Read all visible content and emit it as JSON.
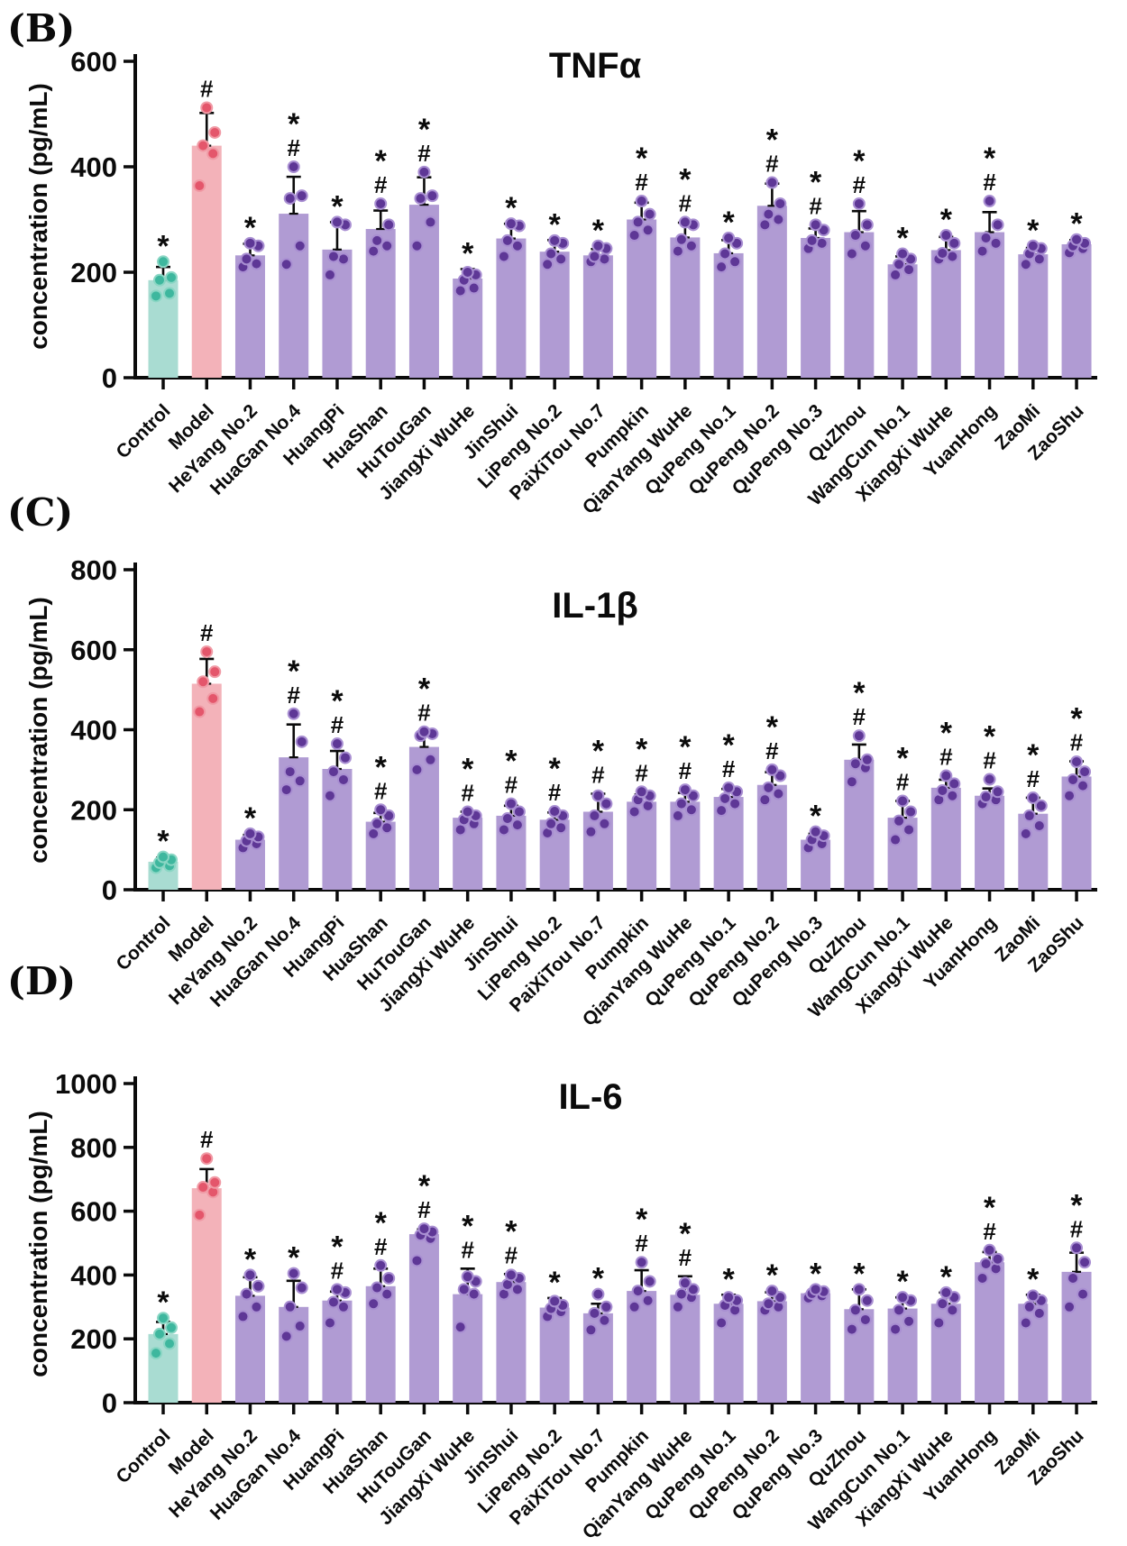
{
  "figure_colors": {
    "background": "#ffffff",
    "axis": "#0b0b0b",
    "control_bar": "#a9dcd2",
    "control_point": "#3eb79e",
    "control_point_stroke": "#8ad6c4",
    "model_bar": "#f3b2b9",
    "model_point": "#e4566b",
    "model_point_stroke": "#f09aa5",
    "treatment_bar": "#b09bd3",
    "treatment_point": "#5e3796",
    "treatment_point_stroke": "#a98fd2"
  },
  "category_groups": [
    "control",
    "model",
    "treatment",
    "treatment",
    "treatment",
    "treatment",
    "treatment",
    "treatment",
    "treatment",
    "treatment",
    "treatment",
    "treatment",
    "treatment",
    "treatment",
    "treatment",
    "treatment",
    "treatment",
    "treatment",
    "treatment",
    "treatment",
    "treatment",
    "treatment"
  ],
  "chart_data": [
    {
      "type": "bar",
      "panel_label": "(B)",
      "title": "TNFα",
      "ylabel": "concentration (pg/mL)",
      "ylim": [
        0,
        600
      ],
      "yticks": [
        0,
        200,
        400,
        600
      ],
      "grid": false,
      "legend": "none",
      "categories": [
        "Control",
        "Model",
        "HeYang No.2",
        "HuaGan No.4",
        "HuangPi",
        "HuaShan",
        "HuTouGan",
        "JiangXi WuHe",
        "JinShui",
        "LiPeng No.2",
        "PaiXiTou No.7",
        "Pumpkin",
        "QianYang WuHe",
        "QuPeng No.1",
        "QuPeng No.2",
        "QuPeng No.3",
        "QuZhou",
        "WangCun No.1",
        "XiangXi WuHe",
        "YuanHong",
        "ZaoMi",
        "ZaoShu"
      ],
      "values": [
        185,
        440,
        232,
        311,
        243,
        282,
        328,
        188,
        264,
        239,
        232,
        300,
        266,
        236,
        326,
        265,
        276,
        215,
        242,
        276,
        234,
        253
      ],
      "errors_sd_upper": [
        25,
        62,
        22,
        70,
        52,
        35,
        52,
        18,
        28,
        22,
        12,
        32,
        28,
        25,
        42,
        18,
        40,
        15,
        25,
        38,
        12,
        8
      ],
      "annotations": [
        "*",
        "#",
        "*",
        "*#",
        "*",
        "*#",
        "*#",
        "*",
        "*",
        "*",
        "*",
        "*#",
        "*#",
        "*",
        "*#",
        "*#",
        "*#",
        "*",
        "*",
        "*#",
        "*",
        "*"
      ],
      "points": [
        [
          155,
          160,
          185,
          190,
          220
        ],
        [
          364,
          425,
          440,
          465,
          512
        ],
        [
          210,
          216,
          225,
          250,
          255
        ],
        [
          215,
          250,
          340,
          345,
          400
        ],
        [
          195,
          225,
          230,
          290,
          295
        ],
        [
          240,
          250,
          260,
          290,
          330
        ],
        [
          250,
          295,
          340,
          345,
          390
        ],
        [
          165,
          170,
          185,
          195,
          200
        ],
        [
          230,
          250,
          260,
          288,
          292
        ],
        [
          215,
          225,
          235,
          255,
          260
        ],
        [
          220,
          225,
          230,
          245,
          250
        ],
        [
          270,
          280,
          295,
          310,
          335
        ],
        [
          240,
          250,
          262,
          290,
          295
        ],
        [
          210,
          220,
          235,
          255,
          265
        ],
        [
          290,
          300,
          310,
          330,
          370
        ],
        [
          245,
          255,
          260,
          280,
          290
        ],
        [
          235,
          250,
          270,
          290,
          330
        ],
        [
          195,
          205,
          215,
          225,
          235
        ],
        [
          225,
          230,
          236,
          255,
          270
        ],
        [
          240,
          255,
          265,
          290,
          335
        ],
        [
          215,
          225,
          235,
          245,
          250
        ],
        [
          237,
          245,
          250,
          255,
          262
        ]
      ]
    },
    {
      "type": "bar",
      "panel_label": "(C)",
      "title": "IL-1β",
      "ylabel": "concentration (pg/mL)",
      "ylim": [
        0,
        800
      ],
      "yticks": [
        0,
        200,
        400,
        600,
        800
      ],
      "grid": false,
      "legend": "none",
      "categories": [
        "Control",
        "Model",
        "HeYang No.2",
        "HuaGan No.4",
        "HuangPi",
        "HuaShan",
        "HuTouGan",
        "JiangXi WuHe",
        "JinShui",
        "LiPeng No.2",
        "PaiXiTou No.7",
        "Pumpkin",
        "QianYang WuHe",
        "QuPeng No.1",
        "QuPeng No.2",
        "QuPeng No.3",
        "QuZhou",
        "WangCun No.1",
        "XiangXi WuHe",
        "YuanHong",
        "ZaoMi",
        "ZaoShu"
      ],
      "values": [
        70,
        515,
        125,
        331,
        302,
        170,
        357,
        180,
        185,
        175,
        195,
        220,
        220,
        232,
        262,
        125,
        325,
        180,
        255,
        235,
        190,
        283
      ],
      "errors_sd_upper": [
        10,
        62,
        12,
        82,
        45,
        22,
        35,
        15,
        25,
        18,
        45,
        18,
        22,
        20,
        32,
        15,
        38,
        42,
        20,
        18,
        40,
        38
      ],
      "annotations": [
        "*",
        "#",
        "*",
        "*#",
        "*#",
        "*#",
        "*#",
        "*#",
        "*#",
        "*#",
        "*#",
        "*#",
        "*#",
        "*#",
        "*#",
        "*",
        "*#",
        "*#",
        "*#",
        "*#",
        "*#",
        "*#"
      ],
      "points": [
        [
          55,
          60,
          68,
          75,
          82
        ],
        [
          445,
          478,
          520,
          545,
          595
        ],
        [
          105,
          115,
          122,
          132,
          140
        ],
        [
          250,
          272,
          295,
          370,
          440
        ],
        [
          235,
          275,
          295,
          330,
          365
        ],
        [
          140,
          155,
          165,
          185,
          200
        ],
        [
          300,
          325,
          385,
          390,
          395
        ],
        [
          150,
          165,
          175,
          185,
          195
        ],
        [
          150,
          162,
          178,
          195,
          215
        ],
        [
          142,
          155,
          165,
          185,
          196
        ],
        [
          145,
          165,
          185,
          215,
          235
        ],
        [
          195,
          210,
          225,
          235,
          245
        ],
        [
          185,
          200,
          215,
          235,
          250
        ],
        [
          198,
          215,
          228,
          245,
          255
        ],
        [
          225,
          240,
          255,
          285,
          300
        ],
        [
          105,
          115,
          125,
          135,
          145
        ],
        [
          270,
          305,
          315,
          325,
          385
        ],
        [
          125,
          150,
          172,
          195,
          222
        ],
        [
          225,
          235,
          248,
          265,
          285
        ],
        [
          215,
          225,
          232,
          245,
          276
        ],
        [
          140,
          160,
          185,
          210,
          230
        ],
        [
          235,
          260,
          275,
          295,
          320
        ]
      ]
    },
    {
      "type": "bar",
      "panel_label": "(D)",
      "title": "IL-6",
      "ylabel": "concentration (pg/mL)",
      "ylim": [
        0,
        1000
      ],
      "yticks": [
        0,
        200,
        400,
        600,
        800,
        1000
      ],
      "grid": false,
      "legend": "none",
      "categories": [
        "Control",
        "Model",
        "HeYang No.2",
        "HuaGan No.4",
        "HuangPi",
        "HuaShan",
        "HuTouGan",
        "JiangXi WuHe",
        "JinShui",
        "LiPeng No.2",
        "PaiXiTou No.7",
        "Pumpkin",
        "QianYang WuHe",
        "QuPeng No.1",
        "QuPeng No.2",
        "QuPeng No.3",
        "QuZhou",
        "WangCun No.1",
        "XiangXi WuHe",
        "YuanHong",
        "ZaoMi",
        "ZaoShu"
      ],
      "values": [
        215,
        672,
        335,
        300,
        320,
        365,
        528,
        340,
        378,
        298,
        280,
        350,
        338,
        310,
        318,
        343,
        293,
        295,
        310,
        440,
        310,
        410
      ],
      "errors_sd_upper": [
        38,
        60,
        58,
        82,
        28,
        55,
        15,
        80,
        25,
        30,
        30,
        65,
        58,
        28,
        28,
        10,
        62,
        35,
        35,
        32,
        28,
        60
      ],
      "annotations": [
        "*",
        "#",
        "*",
        "*",
        "*#",
        "*#",
        "*#",
        "*#",
        "*#",
        "*",
        "*",
        "*#",
        "*#",
        "*",
        "*",
        "*",
        "*",
        "*",
        "*",
        "*#",
        "*",
        "*#"
      ],
      "points": [
        [
          155,
          185,
          215,
          235,
          265
        ],
        [
          588,
          660,
          675,
          690,
          765
        ],
        [
          270,
          300,
          340,
          365,
          400
        ],
        [
          208,
          240,
          300,
          360,
          405
        ],
        [
          250,
          300,
          315,
          345,
          355
        ],
        [
          310,
          340,
          360,
          390,
          430
        ],
        [
          445,
          515,
          525,
          535,
          545
        ],
        [
          237,
          340,
          355,
          380,
          395
        ],
        [
          340,
          355,
          370,
          390,
          400
        ],
        [
          270,
          285,
          295,
          305,
          318
        ],
        [
          228,
          258,
          280,
          300,
          340
        ],
        [
          300,
          320,
          350,
          380,
          440
        ],
        [
          300,
          330,
          340,
          355,
          375
        ],
        [
          250,
          290,
          305,
          320,
          330
        ],
        [
          290,
          300,
          310,
          330,
          350
        ],
        [
          328,
          335,
          342,
          348,
          355
        ],
        [
          230,
          260,
          290,
          320,
          355
        ],
        [
          230,
          255,
          290,
          320,
          330
        ],
        [
          250,
          290,
          310,
          330,
          345
        ],
        [
          390,
          420,
          435,
          450,
          478
        ],
        [
          250,
          280,
          300,
          320,
          335
        ],
        [
          300,
          340,
          390,
          440,
          485
        ]
      ]
    }
  ]
}
